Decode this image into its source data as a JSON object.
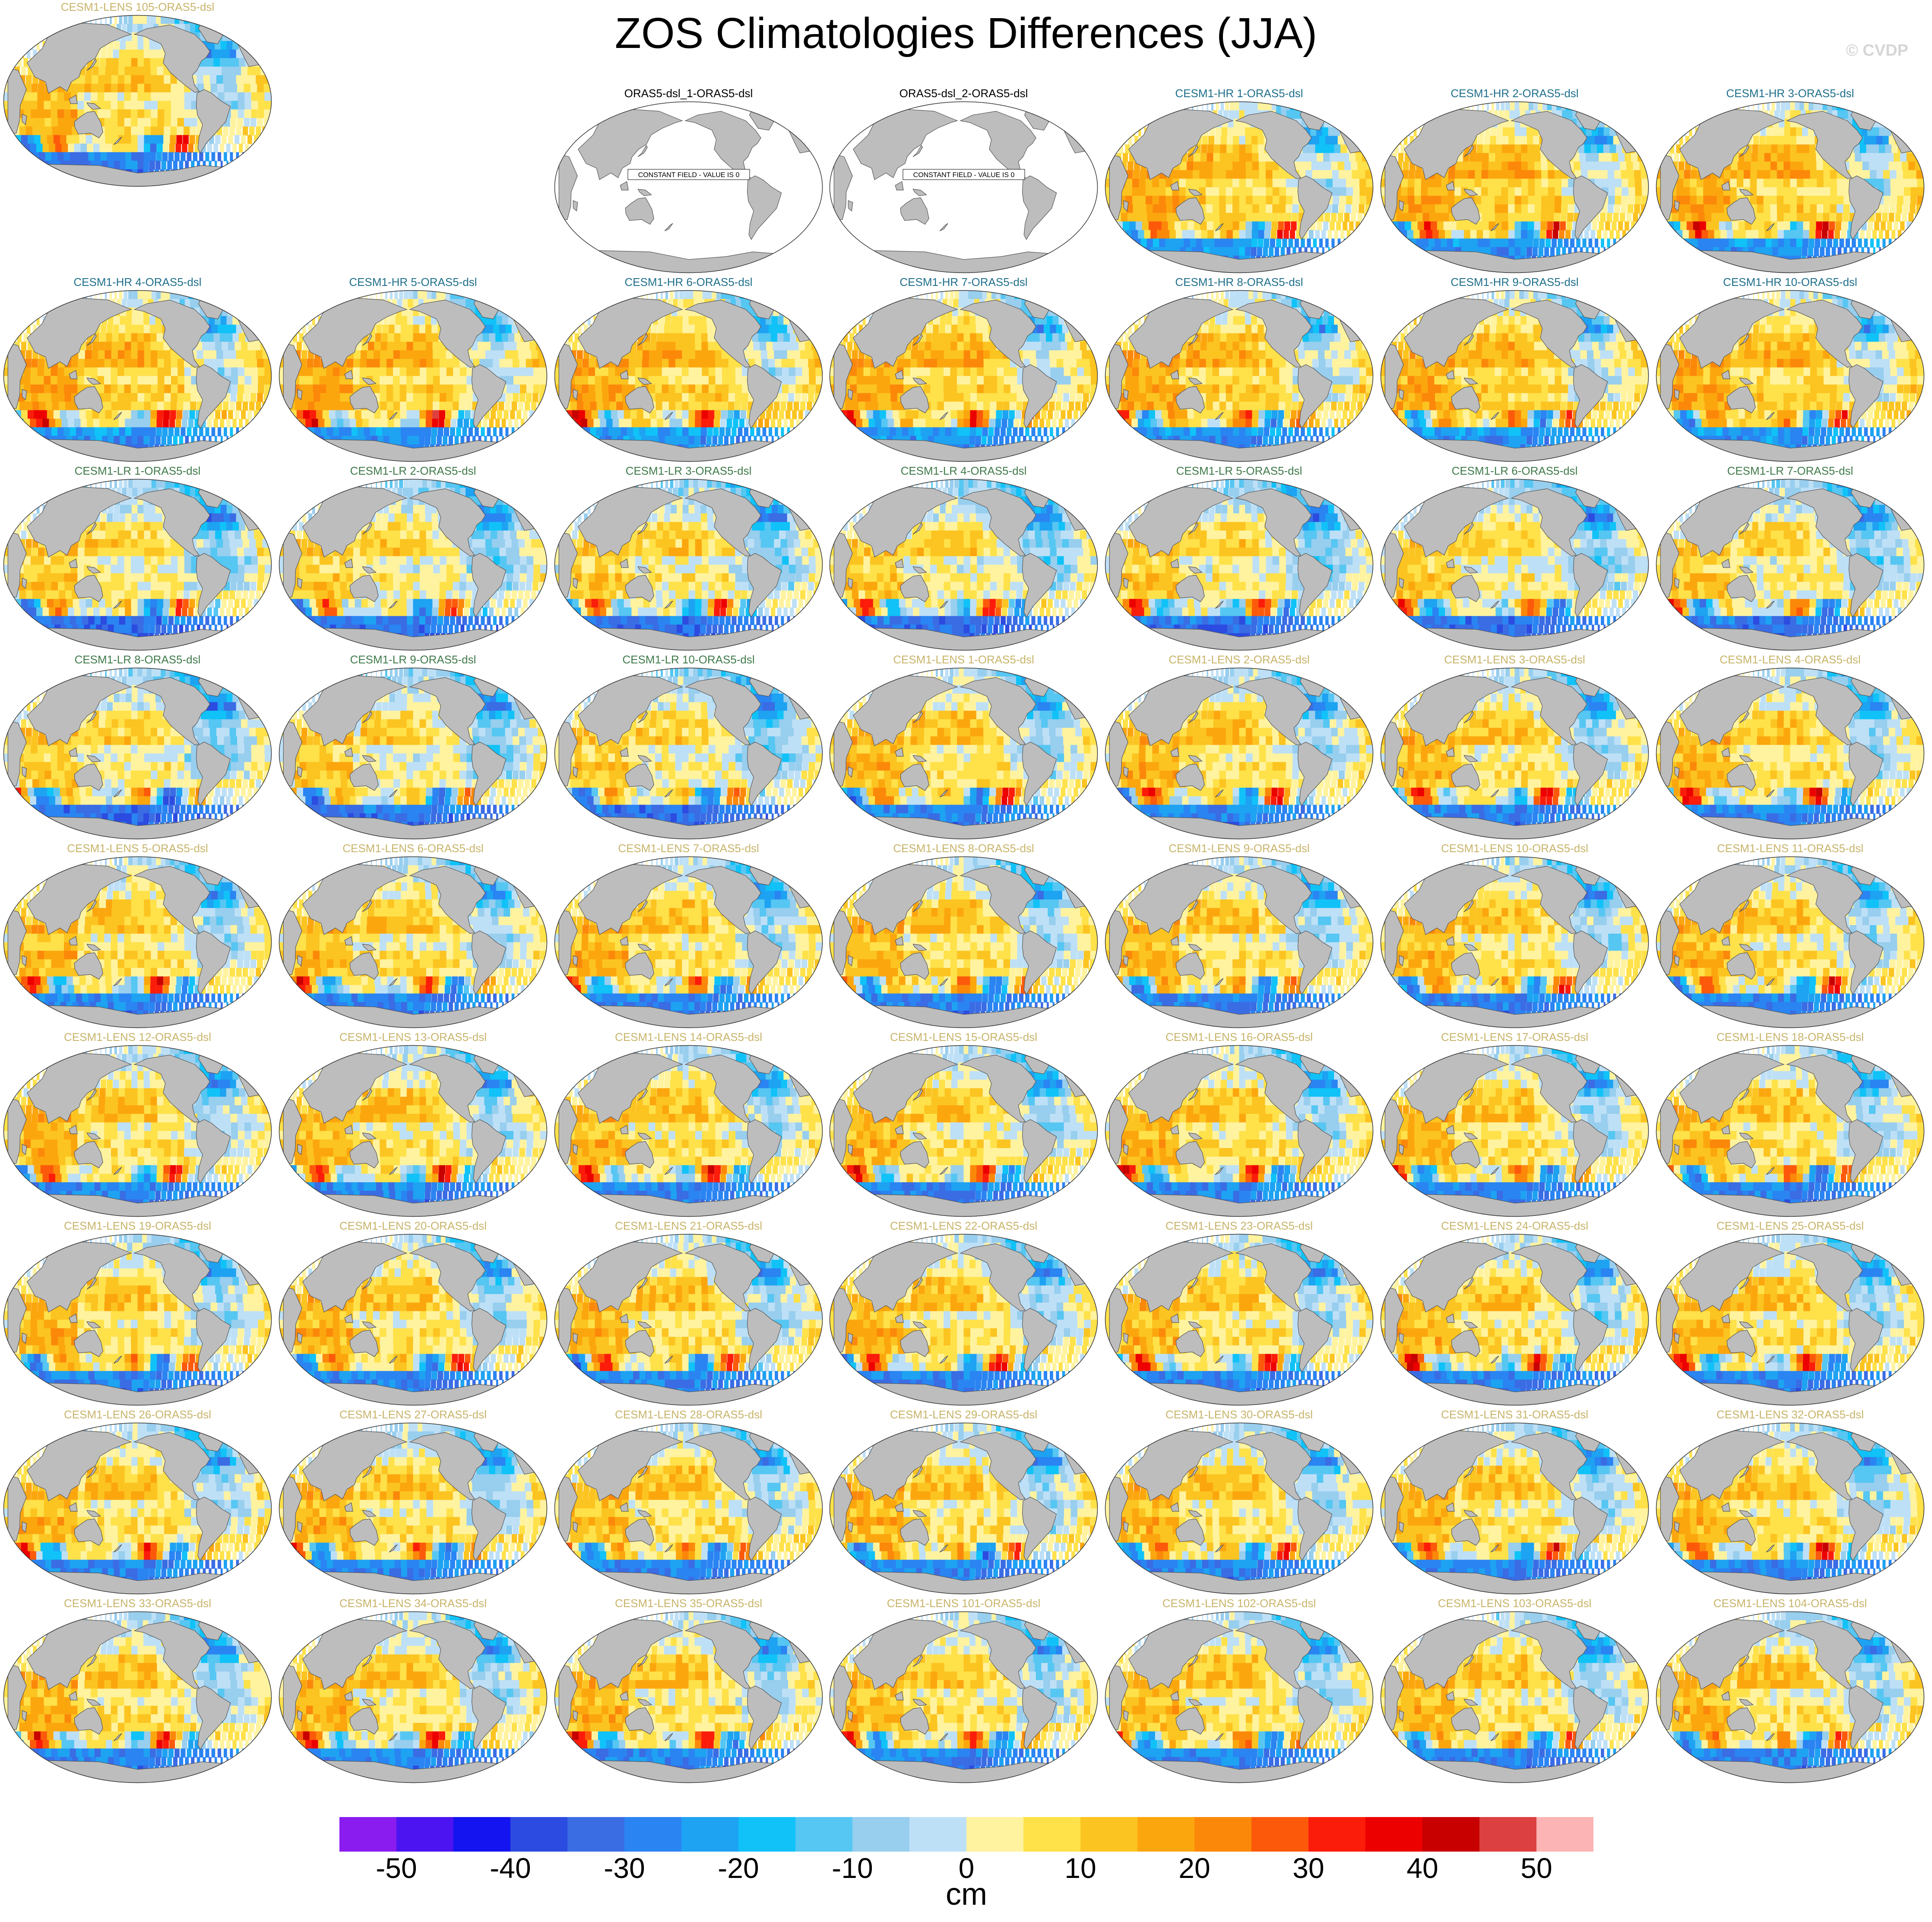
{
  "title": "ZOS Climatologies Differences (JJA)",
  "watermark": "© CVDP",
  "colors": {
    "land": "#bdbdbd",
    "title_ref": "#000000",
    "title_hr": "#1f6f8b",
    "title_lr": "#3f7a4a",
    "title_lens": "#c8b46a"
  },
  "colorbar": {
    "units": "cm",
    "bounds": [
      -55,
      -50,
      -45,
      -40,
      -35,
      -30,
      -25,
      -20,
      -15,
      -10,
      -5,
      0,
      5,
      10,
      15,
      20,
      25,
      30,
      35,
      40,
      45,
      50,
      55
    ],
    "colors": [
      "#8a1cf0",
      "#4b14f0",
      "#1414f0",
      "#2c4be0",
      "#3a6ce4",
      "#2a84f2",
      "#1ea2f2",
      "#10c2f8",
      "#56c6f2",
      "#98ceee",
      "#bee0f6",
      "#fff3a0",
      "#ffe14a",
      "#fcc420",
      "#fca60e",
      "#fc880a",
      "#fc5a0a",
      "#fc1c0a",
      "#ec0000",
      "#c80000",
      "#dc4040",
      "#fcb4b4"
    ],
    "tick_labels": [
      "-50",
      "-40",
      "-30",
      "-20",
      "-10",
      "0",
      "10",
      "20",
      "30",
      "40",
      "50"
    ],
    "tick_values": [
      -50,
      -40,
      -30,
      -20,
      -10,
      0,
      10,
      20,
      30,
      40,
      50
    ]
  },
  "panels": [
    {
      "label": "ORAS5-dsl_1-ORAS5-dsl",
      "group": "ref",
      "constant": true,
      "note": "CONSTANT FIELD - VALUE IS 0"
    },
    {
      "label": "ORAS5-dsl_2-ORAS5-dsl",
      "group": "ref",
      "constant": true,
      "note": "CONSTANT FIELD - VALUE IS 0"
    },
    {
      "label": "CESM1-HR 1-ORAS5-dsl",
      "group": "hr"
    },
    {
      "label": "CESM1-HR 2-ORAS5-dsl",
      "group": "hr"
    },
    {
      "label": "CESM1-HR 3-ORAS5-dsl",
      "group": "hr"
    },
    {
      "label": "CESM1-HR 4-ORAS5-dsl",
      "group": "hr"
    },
    {
      "label": "CESM1-HR 5-ORAS5-dsl",
      "group": "hr"
    },
    {
      "label": "CESM1-HR 6-ORAS5-dsl",
      "group": "hr"
    },
    {
      "label": "CESM1-HR 7-ORAS5-dsl",
      "group": "hr"
    },
    {
      "label": "CESM1-HR 8-ORAS5-dsl",
      "group": "hr"
    },
    {
      "label": "CESM1-HR 9-ORAS5-dsl",
      "group": "hr"
    },
    {
      "label": "CESM1-HR 10-ORAS5-dsl",
      "group": "hr"
    },
    {
      "label": "CESM1-LR 1-ORAS5-dsl",
      "group": "lr"
    },
    {
      "label": "CESM1-LR 2-ORAS5-dsl",
      "group": "lr"
    },
    {
      "label": "CESM1-LR 3-ORAS5-dsl",
      "group": "lr"
    },
    {
      "label": "CESM1-LR 4-ORAS5-dsl",
      "group": "lr"
    },
    {
      "label": "CESM1-LR 5-ORAS5-dsl",
      "group": "lr"
    },
    {
      "label": "CESM1-LR 6-ORAS5-dsl",
      "group": "lr"
    },
    {
      "label": "CESM1-LR 7-ORAS5-dsl",
      "group": "lr"
    },
    {
      "label": "CESM1-LR 8-ORAS5-dsl",
      "group": "lr"
    },
    {
      "label": "CESM1-LR 9-ORAS5-dsl",
      "group": "lr"
    },
    {
      "label": "CESM1-LR 10-ORAS5-dsl",
      "group": "lr"
    },
    {
      "label": "CESM1-LENS 1-ORAS5-dsl",
      "group": "lens"
    },
    {
      "label": "CESM1-LENS 2-ORAS5-dsl",
      "group": "lens"
    },
    {
      "label": "CESM1-LENS 3-ORAS5-dsl",
      "group": "lens"
    },
    {
      "label": "CESM1-LENS 4-ORAS5-dsl",
      "group": "lens"
    },
    {
      "label": "CESM1-LENS 5-ORAS5-dsl",
      "group": "lens"
    },
    {
      "label": "CESM1-LENS 6-ORAS5-dsl",
      "group": "lens"
    },
    {
      "label": "CESM1-LENS 7-ORAS5-dsl",
      "group": "lens"
    },
    {
      "label": "CESM1-LENS 8-ORAS5-dsl",
      "group": "lens"
    },
    {
      "label": "CESM1-LENS 9-ORAS5-dsl",
      "group": "lens"
    },
    {
      "label": "CESM1-LENS 10-ORAS5-dsl",
      "group": "lens"
    },
    {
      "label": "CESM1-LENS 11-ORAS5-dsl",
      "group": "lens"
    },
    {
      "label": "CESM1-LENS 12-ORAS5-dsl",
      "group": "lens"
    },
    {
      "label": "CESM1-LENS 13-ORAS5-dsl",
      "group": "lens"
    },
    {
      "label": "CESM1-LENS 14-ORAS5-dsl",
      "group": "lens"
    },
    {
      "label": "CESM1-LENS 15-ORAS5-dsl",
      "group": "lens"
    },
    {
      "label": "CESM1-LENS 16-ORAS5-dsl",
      "group": "lens"
    },
    {
      "label": "CESM1-LENS 17-ORAS5-dsl",
      "group": "lens"
    },
    {
      "label": "CESM1-LENS 18-ORAS5-dsl",
      "group": "lens"
    },
    {
      "label": "CESM1-LENS 19-ORAS5-dsl",
      "group": "lens"
    },
    {
      "label": "CESM1-LENS 20-ORAS5-dsl",
      "group": "lens"
    },
    {
      "label": "CESM1-LENS 21-ORAS5-dsl",
      "group": "lens"
    },
    {
      "label": "CESM1-LENS 22-ORAS5-dsl",
      "group": "lens"
    },
    {
      "label": "CESM1-LENS 23-ORAS5-dsl",
      "group": "lens"
    },
    {
      "label": "CESM1-LENS 24-ORAS5-dsl",
      "group": "lens"
    },
    {
      "label": "CESM1-LENS 25-ORAS5-dsl",
      "group": "lens"
    },
    {
      "label": "CESM1-LENS 26-ORAS5-dsl",
      "group": "lens"
    },
    {
      "label": "CESM1-LENS 27-ORAS5-dsl",
      "group": "lens"
    },
    {
      "label": "CESM1-LENS 28-ORAS5-dsl",
      "group": "lens"
    },
    {
      "label": "CESM1-LENS 29-ORAS5-dsl",
      "group": "lens"
    },
    {
      "label": "CESM1-LENS 30-ORAS5-dsl",
      "group": "lens"
    },
    {
      "label": "CESM1-LENS 31-ORAS5-dsl",
      "group": "lens"
    },
    {
      "label": "CESM1-LENS 32-ORAS5-dsl",
      "group": "lens"
    },
    {
      "label": "CESM1-LENS 33-ORAS5-dsl",
      "group": "lens"
    },
    {
      "label": "CESM1-LENS 34-ORAS5-dsl",
      "group": "lens"
    },
    {
      "label": "CESM1-LENS 35-ORAS5-dsl",
      "group": "lens"
    },
    {
      "label": "CESM1-LENS 101-ORAS5-dsl",
      "group": "lens"
    },
    {
      "label": "CESM1-LENS 102-ORAS5-dsl",
      "group": "lens"
    },
    {
      "label": "CESM1-LENS 103-ORAS5-dsl",
      "group": "lens"
    },
    {
      "label": "CESM1-LENS 104-ORAS5-dsl",
      "group": "lens"
    },
    {
      "label": "CESM1-LENS 105-ORAS5-dsl",
      "group": "lens"
    }
  ]
}
